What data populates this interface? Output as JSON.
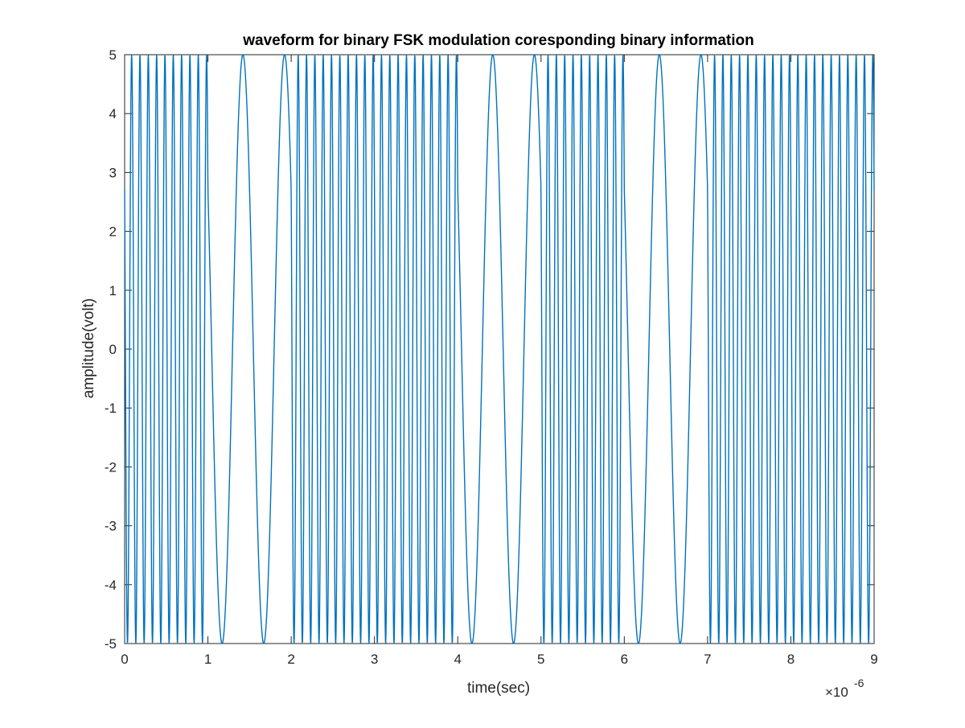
{
  "chart_data": {
    "type": "line",
    "title": "waveform for binary FSK modulation coresponding binary information",
    "xlabel": "time(sec)",
    "ylabel": "amplitude(volt)",
    "x_exponent_label": {
      "base": "×10",
      "exponent": "-6"
    },
    "xlim": [
      0,
      9
    ],
    "ylim": [
      -5,
      5
    ],
    "x_scale_factor": 1e-06,
    "x_ticks": [
      "0",
      "1",
      "2",
      "3",
      "4",
      "5",
      "6",
      "7",
      "8",
      "9"
    ],
    "y_ticks": [
      "5",
      "4",
      "3",
      "2",
      "1",
      "0",
      "-1",
      "-2",
      "-3",
      "-4",
      "-5"
    ],
    "grid": false,
    "box": true,
    "line_color": "#0072BD",
    "signal": {
      "amplitude": 5,
      "bit_duration": 1,
      "bits": [
        1,
        0,
        1,
        1,
        0,
        1,
        0,
        1,
        1
      ],
      "freq_bit_1": 10,
      "freq_bit_0": 2,
      "phase_start": 1.0
    },
    "series": [
      {
        "description": "binary FSK waveform: segments of duration 1 (x10^-6 s); bit 1 -> 10 cycles, bit 0 -> 2 cycles",
        "segments": [
          {
            "x_start": 0,
            "x_end": 1,
            "bit": 1,
            "cycles": 10
          },
          {
            "x_start": 1,
            "x_end": 2,
            "bit": 0,
            "cycles": 2
          },
          {
            "x_start": 2,
            "x_end": 3,
            "bit": 1,
            "cycles": 10
          },
          {
            "x_start": 3,
            "x_end": 4,
            "bit": 1,
            "cycles": 10
          },
          {
            "x_start": 4,
            "x_end": 5,
            "bit": 0,
            "cycles": 2
          },
          {
            "x_start": 5,
            "x_end": 6,
            "bit": 1,
            "cycles": 10
          },
          {
            "x_start": 6,
            "x_end": 7,
            "bit": 0,
            "cycles": 2
          },
          {
            "x_start": 7,
            "x_end": 8,
            "bit": 1,
            "cycles": 10
          },
          {
            "x_start": 8,
            "x_end": 9,
            "bit": 1,
            "cycles": 10
          }
        ]
      }
    ]
  }
}
